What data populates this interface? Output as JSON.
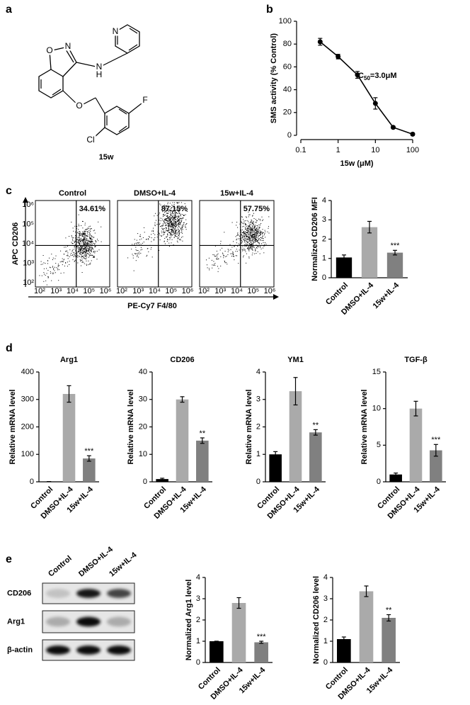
{
  "panel_labels": [
    "a",
    "b",
    "c",
    "d",
    "e"
  ],
  "structure": {
    "atoms": [
      "O",
      "N",
      "N",
      "H",
      "N",
      "O",
      "F",
      "Cl"
    ],
    "name": "15w"
  },
  "chart_data": [
    {
      "type": "scatter",
      "x_label": "15w (μM)",
      "y_label": "SMS activity (% Control)",
      "x": [
        0.33,
        1,
        3.3,
        10,
        30,
        100
      ],
      "values": [
        82,
        69,
        53,
        28,
        7,
        1
      ],
      "errors": [
        3,
        2,
        3,
        5,
        1,
        1
      ],
      "color": "#000000",
      "xscale": "log",
      "xlim": [
        0.1,
        100
      ],
      "xticks": [
        0.1,
        1,
        10,
        100
      ],
      "ylim": [
        0,
        100
      ],
      "yticks": [
        0,
        20,
        40,
        60,
        80,
        100
      ],
      "annotation": {
        "text": "IC",
        "subscript": "50",
        "suffix": "=3.0μM"
      }
    },
    {
      "type": "bar",
      "y_label": "Normalized CD206 MFI",
      "categories": [
        "Control",
        "DMSO+IL-4",
        "15w+IL-4"
      ],
      "values": [
        1.05,
        2.62,
        1.3
      ],
      "errors": [
        0.13,
        0.3,
        0.12
      ],
      "colors": [
        "#000000",
        "#aaaaaa",
        "#808080"
      ],
      "significance": [
        null,
        null,
        "***"
      ],
      "ylim": [
        0,
        4
      ],
      "yticks": [
        0,
        1,
        2,
        3,
        4
      ]
    },
    {
      "type": "bar",
      "title": "Arg1",
      "y_label": "Relative mRNA level",
      "categories": [
        "Control",
        "DMSO+IL-4",
        "15w+IL-4"
      ],
      "values": [
        1,
        320,
        85
      ],
      "errors": [
        0,
        30,
        10
      ],
      "colors": [
        "#000000",
        "#aaaaaa",
        "#808080"
      ],
      "significance": [
        null,
        null,
        "***"
      ],
      "ylim": [
        0,
        400
      ],
      "yticks": [
        0,
        100,
        200,
        300,
        400
      ]
    },
    {
      "type": "bar",
      "title": "CD206",
      "y_label": "Relative mRNA level",
      "categories": [
        "Control",
        "DMSO+IL-4",
        "15w+IL-4"
      ],
      "values": [
        1,
        30,
        15
      ],
      "errors": [
        0.3,
        1,
        1
      ],
      "colors": [
        "#000000",
        "#aaaaaa",
        "#808080"
      ],
      "significance": [
        null,
        null,
        "**"
      ],
      "ylim": [
        0,
        40
      ],
      "yticks": [
        0,
        10,
        20,
        30,
        40
      ]
    },
    {
      "type": "bar",
      "title": "YM1",
      "y_label": "Relative mRNA level",
      "categories": [
        "Control",
        "DMSO+IL-4",
        "15w+IL-4"
      ],
      "values": [
        1,
        3.3,
        1.8
      ],
      "errors": [
        0.1,
        0.5,
        0.1
      ],
      "colors": [
        "#000000",
        "#aaaaaa",
        "#808080"
      ],
      "significance": [
        null,
        null,
        "**"
      ],
      "ylim": [
        0,
        4
      ],
      "yticks": [
        0,
        1,
        2,
        3,
        4
      ]
    },
    {
      "type": "bar",
      "title": "TGF-β",
      "y_label": "Relative mRNA level",
      "categories": [
        "Control",
        "DMSO+IL-4",
        "15w+IL-4"
      ],
      "values": [
        1,
        10,
        4.3
      ],
      "errors": [
        0.2,
        1,
        0.8
      ],
      "colors": [
        "#000000",
        "#aaaaaa",
        "#808080"
      ],
      "significance": [
        null,
        null,
        "***"
      ],
      "ylim": [
        0,
        15
      ],
      "yticks": [
        0,
        5,
        10,
        15
      ]
    },
    {
      "type": "bar",
      "y_label": "Normalized Arg1 level",
      "categories": [
        "Control",
        "DMSO+IL-4",
        "15w+IL-4"
      ],
      "values": [
        1,
        2.8,
        0.95
      ],
      "errors": [
        0,
        0.25,
        0.05
      ],
      "colors": [
        "#000000",
        "#aaaaaa",
        "#808080"
      ],
      "significance": [
        null,
        null,
        "***"
      ],
      "ylim": [
        0,
        4
      ],
      "yticks": [
        0,
        1,
        2,
        3,
        4
      ]
    },
    {
      "type": "bar",
      "y_label": "Normalized CD206 level",
      "categories": [
        "Control",
        "DMSO+IL-4",
        "15w+IL-4"
      ],
      "values": [
        1.1,
        3.35,
        2.1
      ],
      "errors": [
        0.1,
        0.25,
        0.15
      ],
      "colors": [
        "#000000",
        "#aaaaaa",
        "#808080"
      ],
      "significance": [
        null,
        null,
        "**"
      ],
      "ylim": [
        0,
        4
      ],
      "yticks": [
        0,
        1,
        2,
        3,
        4
      ]
    }
  ],
  "flow": {
    "y_label": "APC CD206",
    "x_label": "PE-Cy7 F4/80",
    "ticks": [
      "10²",
      "10³",
      "10⁴",
      "10⁵",
      "10⁶"
    ],
    "panels": [
      {
        "title": "Control",
        "percent": "34.61%",
        "percent_color": "#000000"
      },
      {
        "title": "DMSO+IL-4",
        "percent": "87.15%",
        "percent_color": "#000000"
      },
      {
        "title": "15w+IL-4",
        "percent": "57.75%",
        "percent_color": "#e0201b"
      }
    ]
  },
  "blot": {
    "lanes": [
      "Control",
      "DMSO+IL-4",
      "15w+IL-4"
    ],
    "rows": [
      "CD206",
      "Arg1",
      "β-actin"
    ]
  }
}
